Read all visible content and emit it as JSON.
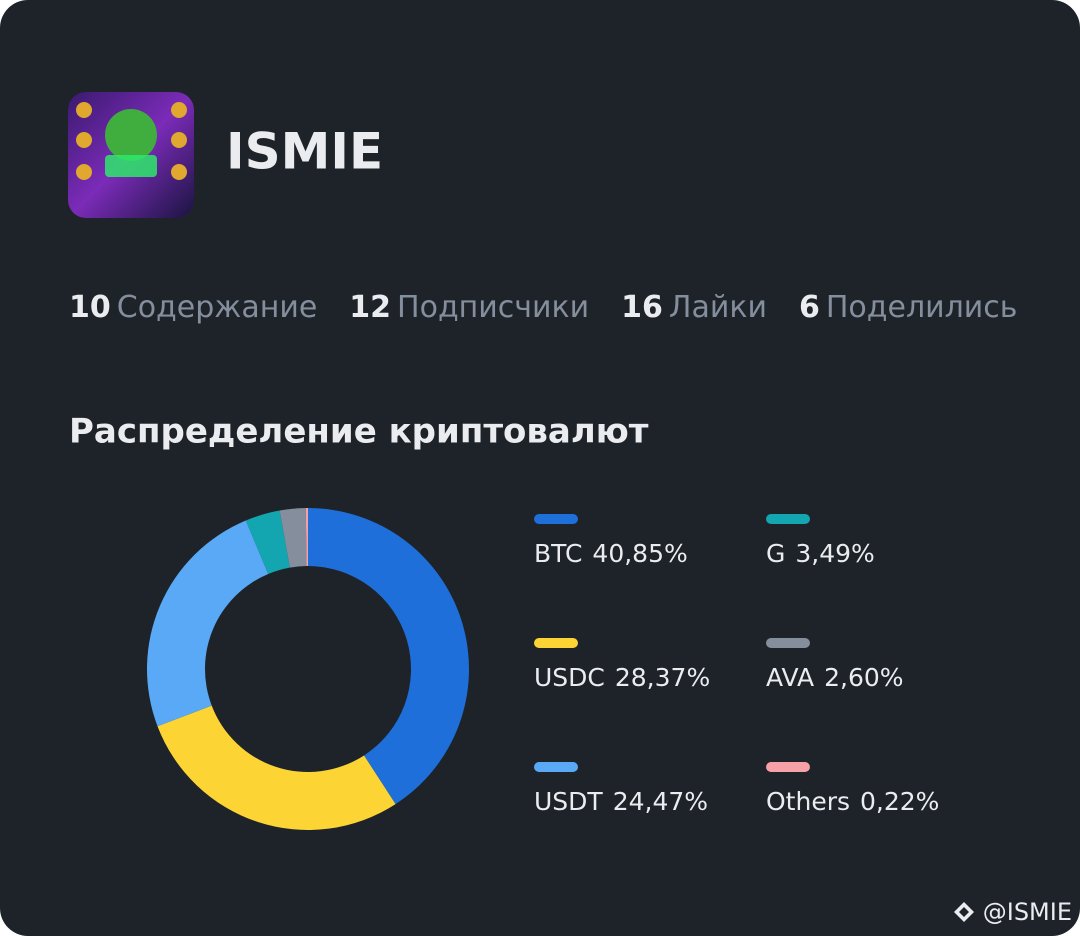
{
  "profile": {
    "name": "ISMIE",
    "stats": [
      {
        "value": "10",
        "label": "Содержание"
      },
      {
        "value": "12",
        "label": "Подписчики"
      },
      {
        "value": "16",
        "label": "Лайки"
      },
      {
        "value": "6",
        "label": "Поделились"
      }
    ]
  },
  "chart_data": {
    "type": "donut",
    "title": "Распределение криптовалют",
    "categories": [
      "BTC",
      "USDC",
      "USDT",
      "G",
      "AVA",
      "Others"
    ],
    "values": [
      40.85,
      28.37,
      24.47,
      3.49,
      2.6,
      0.22
    ],
    "value_labels": [
      "40,85%",
      "28,37%",
      "24,47%",
      "3,49%",
      "2,60%",
      "0,22%"
    ],
    "colors": [
      "#1e6fd9",
      "#fcd535",
      "#5aa9f7",
      "#14a6b0",
      "#848e9c",
      "#f6a0a8"
    ]
  },
  "watermark": "@ISMIE"
}
